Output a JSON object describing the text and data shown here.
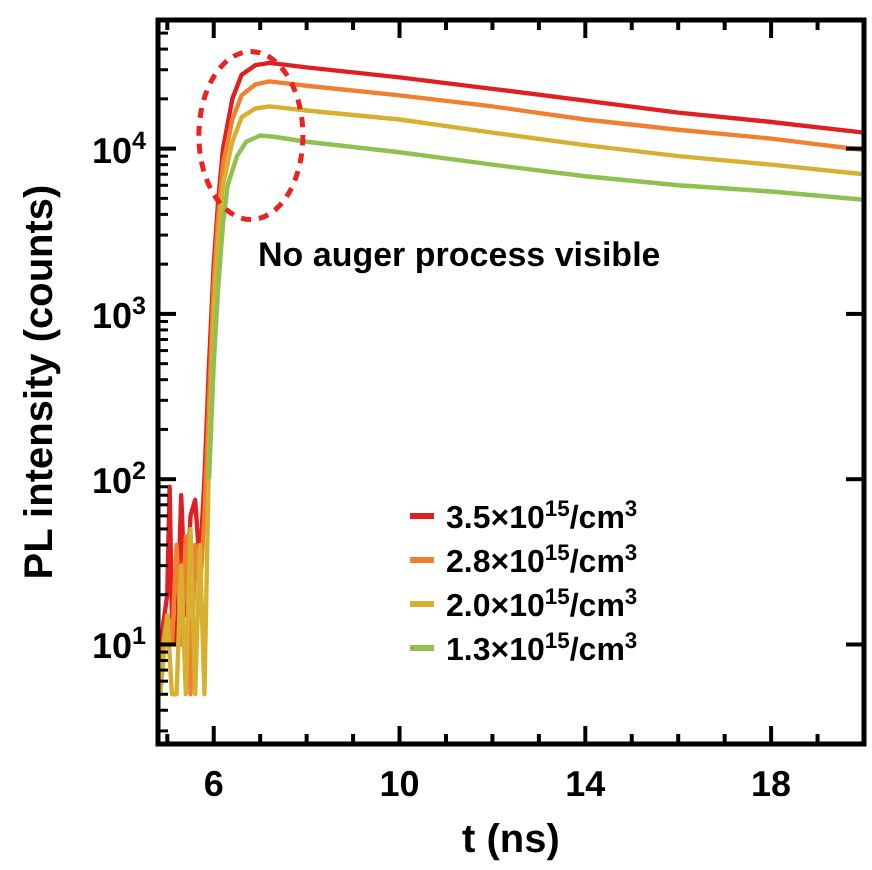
{
  "chart_data": {
    "type": "line",
    "xlabel": "t (ns)",
    "ylabel": "PL intensity (counts)",
    "log": "y",
    "xlim": [
      4.8,
      20
    ],
    "ylim": [
      2.5,
      60000
    ],
    "xticks": [
      {
        "value": 5,
        "label": null
      },
      6,
      {
        "value": 7,
        "label": null
      },
      {
        "value": 8,
        "label": null
      },
      {
        "value": 9,
        "label": null
      },
      10,
      {
        "value": 11,
        "label": null
      },
      {
        "value": 12,
        "label": null
      },
      {
        "value": 13,
        "label": null
      },
      14,
      {
        "value": 15,
        "label": null
      },
      {
        "value": 16,
        "label": null
      },
      {
        "value": 17,
        "label": null
      },
      18,
      {
        "value": 19,
        "label": null
      }
    ],
    "yticks": [
      {
        "value": 10,
        "label": "10$^{1}$"
      },
      {
        "value": 100,
        "label": "10$^{2}$"
      },
      {
        "value": 1000,
        "label": "10$^{3}$"
      },
      {
        "value": 10000,
        "label": "10$^{4}$"
      }
    ],
    "legend": "bottom right",
    "line_style": "solid",
    "marker": "none",
    "grid": false,
    "annotations": [
      "No auger process visible"
    ],
    "series": [
      {
        "name": "3.5×10$^{15}$/cm$^{3}$",
        "color": "#e02020",
        "x": [
          4.85,
          5.0,
          5.05,
          5.1,
          5.2,
          5.3,
          5.4,
          5.5,
          5.6,
          5.7,
          5.8,
          5.9,
          6.0,
          6.1,
          6.2,
          6.4,
          6.6,
          6.9,
          7.2,
          8,
          10,
          12,
          14,
          16,
          18,
          20
        ],
        "values": [
          10,
          20,
          90,
          15,
          10,
          80,
          15,
          60,
          75,
          30,
          100,
          500,
          2000,
          5000,
          10000,
          20000,
          28000,
          32000,
          33000,
          31000,
          27000,
          23000,
          19500,
          16500,
          14500,
          12500
        ]
      },
      {
        "name": "2.8×10$^{15}$/cm$^{3}$",
        "color": "#f08030",
        "x": [
          4.85,
          5.0,
          5.1,
          5.2,
          5.3,
          5.4,
          5.5,
          5.6,
          5.7,
          5.8,
          5.9,
          6.0,
          6.1,
          6.2,
          6.4,
          6.6,
          6.9,
          7.2,
          8,
          10,
          12,
          14,
          16,
          18,
          20
        ],
        "values": [
          8,
          15,
          10,
          40,
          10,
          45,
          5,
          40,
          20,
          60,
          300,
          1500,
          4000,
          8000,
          15000,
          21000,
          24500,
          25500,
          24000,
          21000,
          18000,
          15000,
          13000,
          11500,
          9800
        ]
      },
      {
        "name": "2.0×10$^{15}$/cm$^{3}$",
        "color": "#d8b030",
        "x": [
          4.85,
          5.0,
          5.1,
          5.2,
          5.3,
          5.4,
          5.5,
          5.6,
          5.7,
          5.8,
          5.9,
          6.0,
          6.1,
          6.2,
          6.4,
          6.6,
          6.9,
          7.2,
          8,
          10,
          12,
          14,
          16,
          18,
          20
        ],
        "values": [
          5,
          15,
          5,
          5,
          30,
          5,
          50,
          5,
          40,
          5,
          150,
          1000,
          3000,
          6000,
          11000,
          15500,
          17500,
          18000,
          17000,
          15000,
          12500,
          10500,
          9000,
          8000,
          7000
        ]
      },
      {
        "name": "1.3×10$^{15}$/cm$^{3}$",
        "color": "#90c050",
        "x": [
          5.9,
          6.0,
          6.1,
          6.2,
          6.3,
          6.5,
          6.7,
          7.0,
          7.3,
          8,
          10,
          12,
          14,
          16,
          18,
          20
        ],
        "values": [
          100,
          500,
          1500,
          3500,
          6000,
          9000,
          11000,
          12000,
          11800,
          11000,
          9500,
          8000,
          6800,
          6000,
          5500,
          4900
        ]
      }
    ]
  }
}
